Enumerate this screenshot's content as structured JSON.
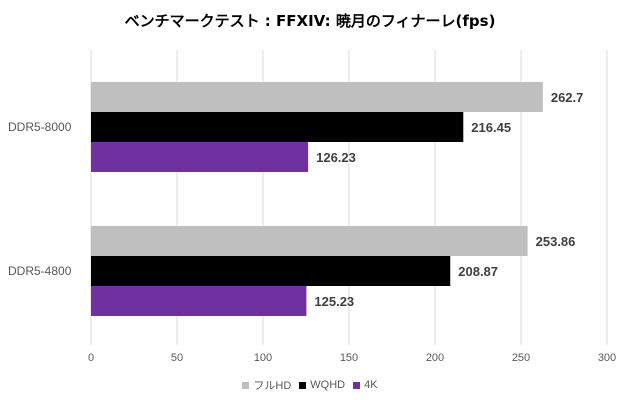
{
  "chart_data": {
    "type": "bar",
    "orientation": "horizontal",
    "title": "ベンチマークテスト : FFXIV: 暁月のフィナーレ(fps)",
    "categories": [
      "DDR5-8000",
      "DDR5-4800"
    ],
    "series": [
      {
        "name": "フルHD",
        "color": "#bfbfbf",
        "values": [
          262.7,
          253.86
        ]
      },
      {
        "name": "WQHD",
        "color": "#000000",
        "values": [
          216.45,
          208.87
        ]
      },
      {
        "name": "4K",
        "color": "#7030a0",
        "values": [
          126.23,
          125.23
        ]
      }
    ],
    "xlim": [
      0,
      300
    ],
    "xticks": [
      "0",
      "50",
      "100",
      "150",
      "200",
      "250",
      "300"
    ],
    "grid": true,
    "legend": "bottom"
  }
}
